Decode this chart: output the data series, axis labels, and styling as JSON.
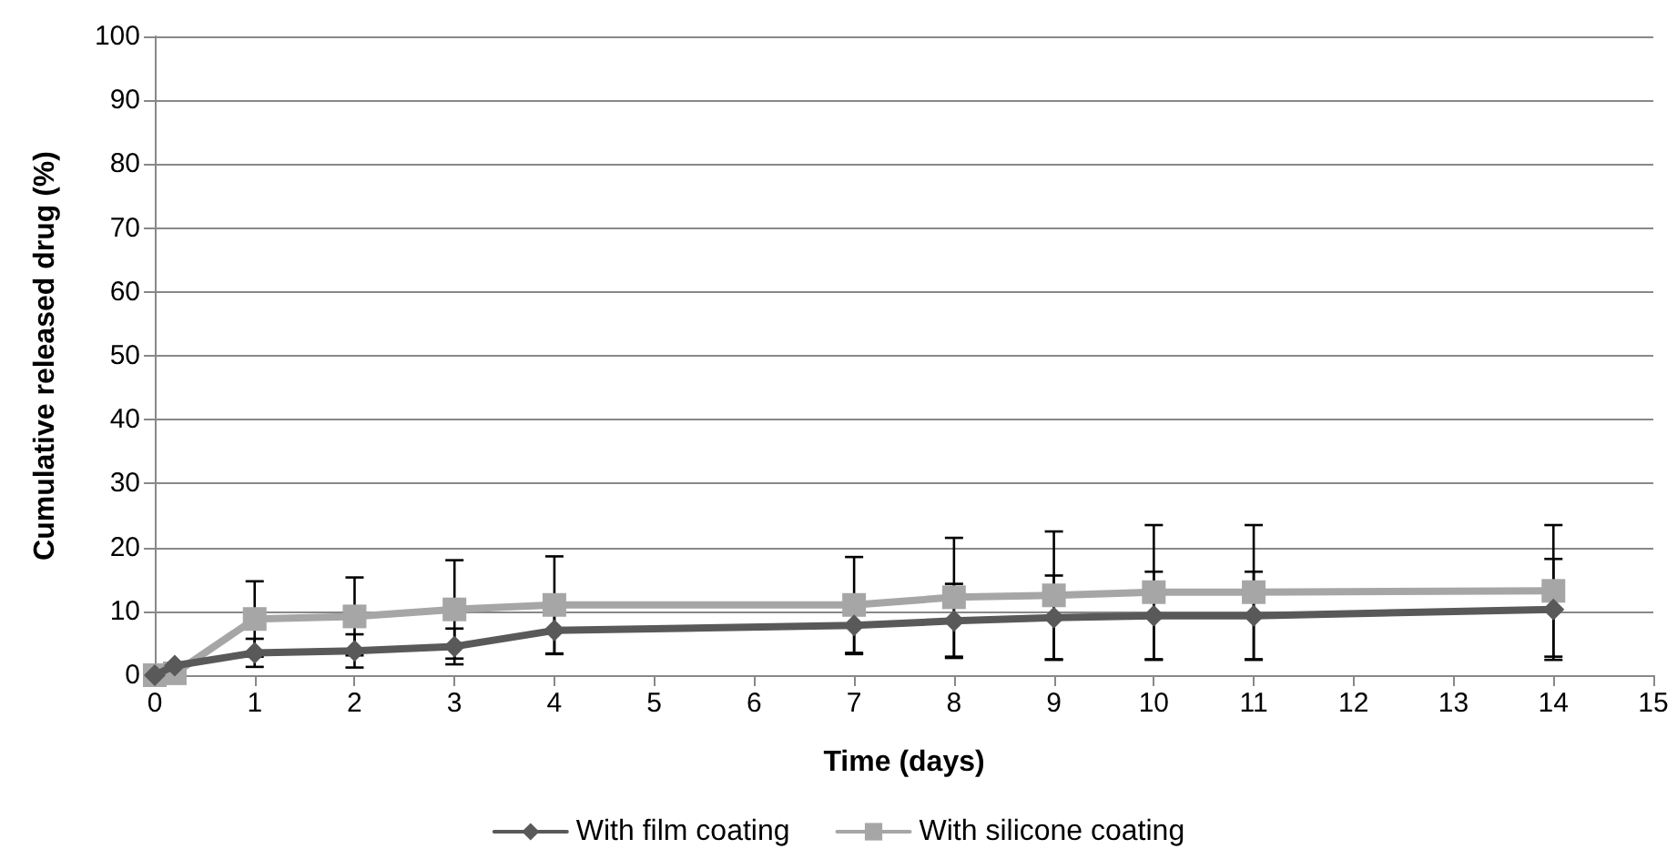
{
  "chart_data": {
    "type": "line",
    "xlabel": "Time (days)",
    "ylabel": "Cumulative released drug (%)",
    "x": [
      0,
      0.2,
      1,
      2,
      3,
      4,
      7,
      8,
      9,
      10,
      11,
      14
    ],
    "series": [
      {
        "name": "With film coating",
        "color": "#595959",
        "marker": "diamond",
        "values": [
          0,
          1.5,
          3.5,
          3.8,
          4.5,
          7,
          7.8,
          8.5,
          9,
          9.3,
          9.3,
          10.3
        ],
        "errors": [
          null,
          null,
          2.2,
          2.6,
          2.8,
          3.7,
          4.5,
          5.8,
          6.6,
          6.9,
          6.9,
          7.9
        ]
      },
      {
        "name": "With silicone coating",
        "color": "#a6a6a6",
        "marker": "square",
        "values": [
          0,
          0.3,
          8.8,
          9.2,
          10.3,
          11,
          11,
          12.2,
          12.5,
          13,
          13,
          13.2
        ],
        "errors": [
          null,
          null,
          5.9,
          6.1,
          7.7,
          7.6,
          7.5,
          9.3,
          10,
          10.5,
          10.5,
          10.3
        ]
      }
    ],
    "xlim": [
      0,
      15
    ],
    "xticks": [
      0,
      1,
      2,
      3,
      4,
      5,
      6,
      7,
      8,
      9,
      10,
      11,
      12,
      13,
      14,
      15
    ],
    "ylim": [
      0,
      100
    ],
    "yticks": [
      0,
      10,
      20,
      30,
      40,
      50,
      60,
      70,
      80,
      90,
      100
    ],
    "grid": "y",
    "legend": "bottom",
    "line_style": "solid"
  }
}
